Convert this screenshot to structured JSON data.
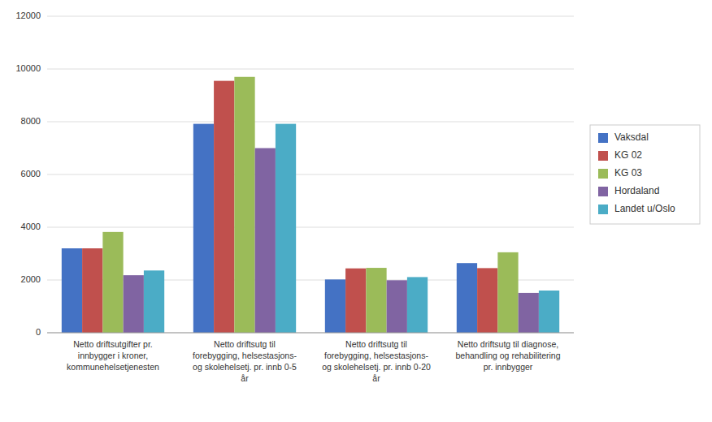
{
  "chart_data": {
    "type": "bar",
    "categories": [
      "Netto driftsutgifter pr.\ninnbygger i kroner,\nkommunehelsetjenesten",
      "Netto driftsutg til\nforebygging, helsestasjons-\nog skolehelsetj. pr. innb 0-5\når",
      "Netto driftsutg til\nforebygging, helsestasjons-\nog skolehelsetj. pr. innb 0-20\når",
      "Netto driftsutg til diagnose,\nbehandling og rehabilitering\npr. innbygger"
    ],
    "series": [
      {
        "name": "Vaksdal",
        "color": "#4472C4",
        "values": [
          3200,
          7920,
          2020,
          2640
        ]
      },
      {
        "name": "KG 02",
        "color": "#C0504D",
        "values": [
          3200,
          9550,
          2440,
          2450
        ]
      },
      {
        "name": "KG 03",
        "color": "#9BBB59",
        "values": [
          3820,
          9700,
          2460,
          3050
        ]
      },
      {
        "name": "Hordaland",
        "color": "#8064A2",
        "values": [
          2180,
          7000,
          1990,
          1510
        ]
      },
      {
        "name": "Landet u/Oslo",
        "color": "#4BACC6",
        "values": [
          2360,
          7920,
          2110,
          1600
        ]
      }
    ],
    "ylim": [
      0,
      12000
    ],
    "yticks": [
      0,
      2000,
      4000,
      6000,
      8000,
      10000,
      12000
    ],
    "grid": true,
    "legend": "right"
  }
}
